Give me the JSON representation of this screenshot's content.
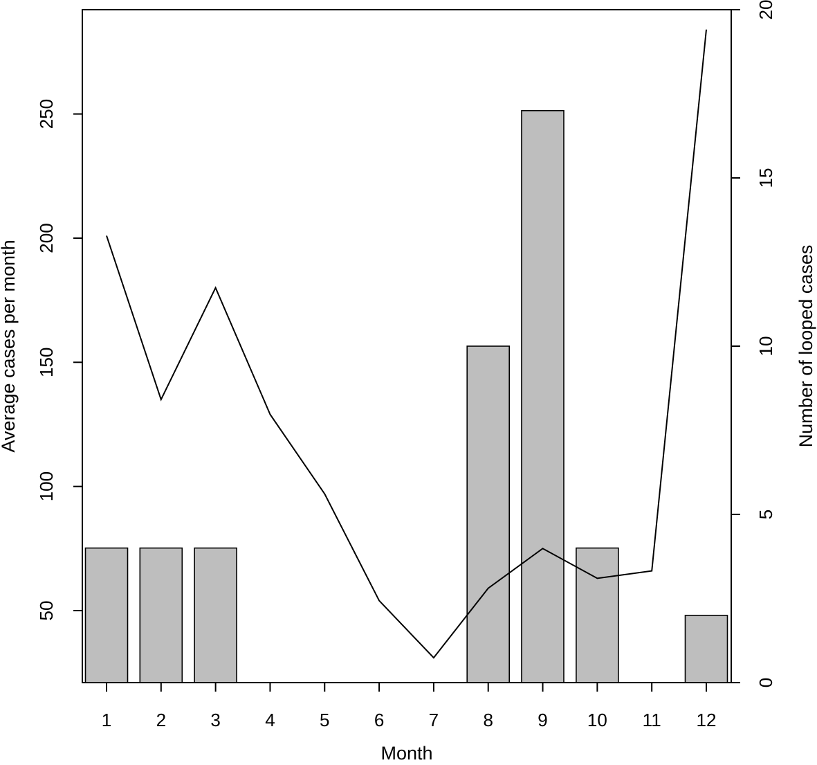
{
  "chart_data": {
    "type": "bar",
    "title": "",
    "xlabel": "Month",
    "ylabel": "Average cases per month",
    "y2label": "Number of looped cases",
    "categories": [
      "1",
      "2",
      "3",
      "4",
      "5",
      "6",
      "7",
      "8",
      "9",
      "10",
      "11",
      "12"
    ],
    "bar_series": {
      "axis": "right",
      "values": [
        4,
        4,
        4,
        0,
        0,
        0,
        0,
        10,
        17,
        4,
        0,
        2
      ],
      "color": "#bebebe",
      "edge_color": "#000000"
    },
    "line_series": {
      "axis": "left",
      "values": [
        201,
        135,
        180,
        129,
        97,
        54,
        31,
        59,
        75,
        63,
        66,
        284
      ],
      "color": "#000000"
    },
    "ylim": [
      21,
      292
    ],
    "y2lim": [
      0,
      20
    ],
    "yticks": [
      50,
      100,
      150,
      200,
      250
    ],
    "y2ticks": [
      0,
      5,
      10,
      15,
      20
    ],
    "grid": false,
    "legend": "none"
  }
}
